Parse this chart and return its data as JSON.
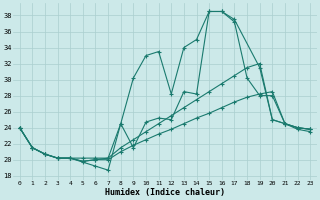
{
  "xlabel": "Humidex (Indice chaleur)",
  "background_color": "#cce9e9",
  "line_color": "#1a7a6e",
  "grid_color": "#aacfcf",
  "xlim": [
    -0.5,
    23.5
  ],
  "ylim": [
    17.5,
    39.5
  ],
  "xticks": [
    0,
    1,
    2,
    3,
    4,
    5,
    6,
    7,
    8,
    9,
    10,
    11,
    12,
    13,
    14,
    15,
    16,
    17,
    18,
    19,
    20,
    21,
    22,
    23
  ],
  "yticks": [
    18,
    20,
    22,
    24,
    26,
    28,
    30,
    32,
    34,
    36,
    38
  ],
  "series": [
    {
      "x": [
        0,
        1,
        2,
        3,
        4,
        5,
        6,
        7,
        8,
        9,
        10,
        11,
        12,
        13,
        14,
        15,
        16,
        17,
        19,
        20,
        21,
        22,
        23
      ],
      "y": [
        24,
        21.5,
        20.7,
        20.2,
        20.2,
        19.7,
        19.2,
        18.7,
        24.5,
        30.2,
        33,
        33.5,
        28.2,
        34,
        35,
        38.5,
        38.5,
        37.5,
        31.5,
        25,
        24.5,
        23.8,
        23.5
      ]
    },
    {
      "x": [
        0,
        1,
        2,
        3,
        4,
        5,
        6,
        7,
        8,
        9,
        10,
        11,
        12,
        13,
        14,
        15,
        16,
        17,
        18,
        19,
        20,
        21,
        22,
        23
      ],
      "y": [
        24,
        21.5,
        20.7,
        20.2,
        20.2,
        19.8,
        20.0,
        20.2,
        21.5,
        22.5,
        23.5,
        24.5,
        25.5,
        26.5,
        27.5,
        28.5,
        29.5,
        30.5,
        31.5,
        32,
        25,
        24.5,
        24,
        23.8
      ]
    },
    {
      "x": [
        0,
        1,
        2,
        3,
        4,
        5,
        6,
        7,
        8,
        9,
        10,
        11,
        12,
        13,
        14,
        15,
        16,
        17,
        18,
        19,
        20,
        21,
        22,
        23
      ],
      "y": [
        24,
        21.5,
        20.7,
        20.2,
        20.2,
        19.8,
        20.0,
        20.0,
        21.0,
        21.8,
        22.5,
        23.2,
        23.8,
        24.5,
        25.2,
        25.8,
        26.5,
        27.2,
        27.8,
        28.2,
        28.5,
        24.5,
        24,
        23.8
      ]
    },
    {
      "x": [
        0,
        1,
        2,
        3,
        4,
        5,
        6,
        7,
        8,
        9,
        10,
        11,
        12,
        13,
        14,
        15,
        16,
        17,
        18,
        19,
        20,
        21,
        22,
        23
      ],
      "y": [
        24,
        21.5,
        20.7,
        20.2,
        20.2,
        20.2,
        20.2,
        20.2,
        24.5,
        21.5,
        24.7,
        25.2,
        25.0,
        28.5,
        28.2,
        38.5,
        38.5,
        37.2,
        30.2,
        28.0,
        28.0,
        24.5,
        24,
        23.8
      ]
    }
  ]
}
